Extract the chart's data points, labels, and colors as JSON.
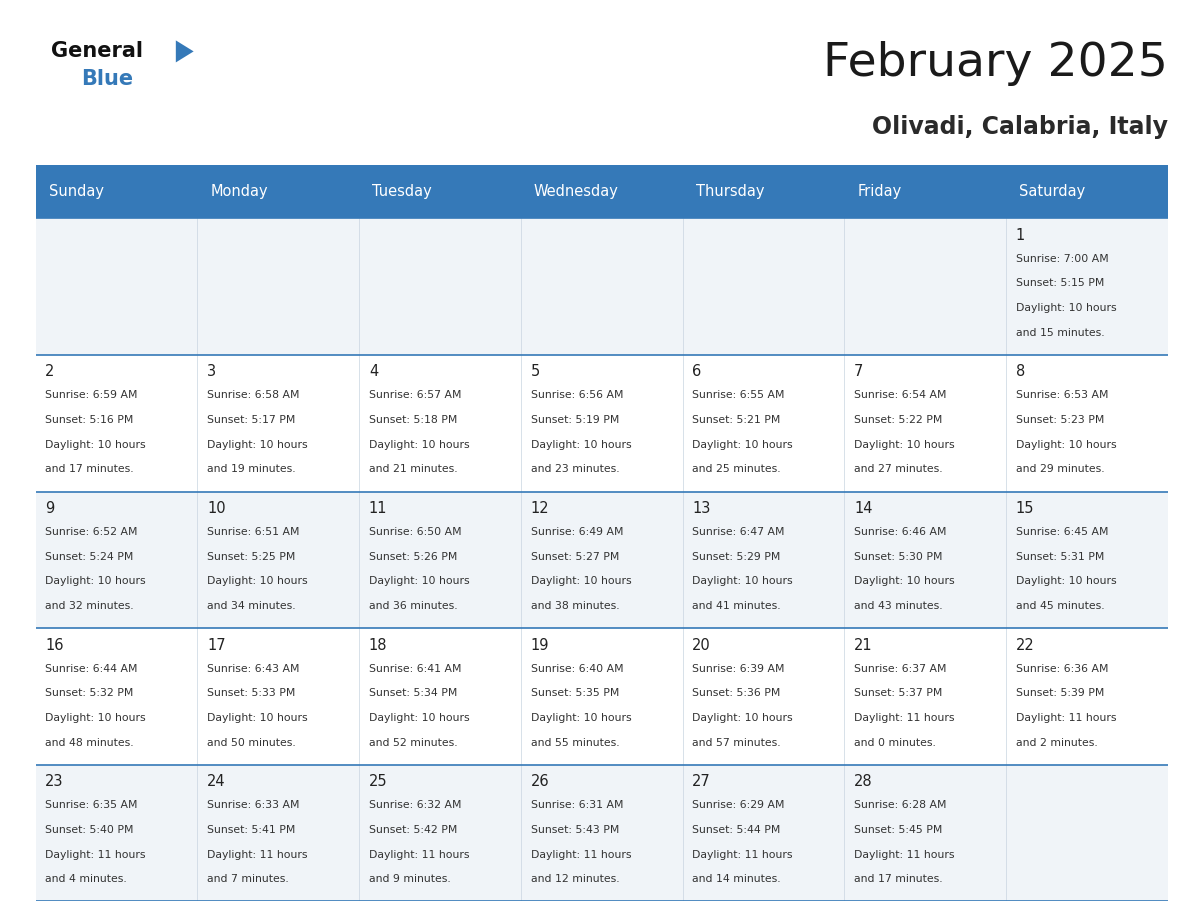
{
  "title": "February 2025",
  "subtitle": "Olivadi, Calabria, Italy",
  "header_bg": "#3579b8",
  "header_text_color": "#ffffff",
  "day_names": [
    "Sunday",
    "Monday",
    "Tuesday",
    "Wednesday",
    "Thursday",
    "Friday",
    "Saturday"
  ],
  "grid_line_color": "#3579b8",
  "bg_color": "#ffffff",
  "cell_bg_white": "#ffffff",
  "cell_bg_gray": "#f0f4f8",
  "calendar": [
    [
      null,
      null,
      null,
      null,
      null,
      null,
      {
        "day": "1",
        "sunrise": "7:00 AM",
        "sunset": "5:15 PM",
        "daylight_line1": "Daylight: 10 hours",
        "daylight_line2": "and 15 minutes."
      }
    ],
    [
      {
        "day": "2",
        "sunrise": "6:59 AM",
        "sunset": "5:16 PM",
        "daylight_line1": "Daylight: 10 hours",
        "daylight_line2": "and 17 minutes."
      },
      {
        "day": "3",
        "sunrise": "6:58 AM",
        "sunset": "5:17 PM",
        "daylight_line1": "Daylight: 10 hours",
        "daylight_line2": "and 19 minutes."
      },
      {
        "day": "4",
        "sunrise": "6:57 AM",
        "sunset": "5:18 PM",
        "daylight_line1": "Daylight: 10 hours",
        "daylight_line2": "and 21 minutes."
      },
      {
        "day": "5",
        "sunrise": "6:56 AM",
        "sunset": "5:19 PM",
        "daylight_line1": "Daylight: 10 hours",
        "daylight_line2": "and 23 minutes."
      },
      {
        "day": "6",
        "sunrise": "6:55 AM",
        "sunset": "5:21 PM",
        "daylight_line1": "Daylight: 10 hours",
        "daylight_line2": "and 25 minutes."
      },
      {
        "day": "7",
        "sunrise": "6:54 AM",
        "sunset": "5:22 PM",
        "daylight_line1": "Daylight: 10 hours",
        "daylight_line2": "and 27 minutes."
      },
      {
        "day": "8",
        "sunrise": "6:53 AM",
        "sunset": "5:23 PM",
        "daylight_line1": "Daylight: 10 hours",
        "daylight_line2": "and 29 minutes."
      }
    ],
    [
      {
        "day": "9",
        "sunrise": "6:52 AM",
        "sunset": "5:24 PM",
        "daylight_line1": "Daylight: 10 hours",
        "daylight_line2": "and 32 minutes."
      },
      {
        "day": "10",
        "sunrise": "6:51 AM",
        "sunset": "5:25 PM",
        "daylight_line1": "Daylight: 10 hours",
        "daylight_line2": "and 34 minutes."
      },
      {
        "day": "11",
        "sunrise": "6:50 AM",
        "sunset": "5:26 PM",
        "daylight_line1": "Daylight: 10 hours",
        "daylight_line2": "and 36 minutes."
      },
      {
        "day": "12",
        "sunrise": "6:49 AM",
        "sunset": "5:27 PM",
        "daylight_line1": "Daylight: 10 hours",
        "daylight_line2": "and 38 minutes."
      },
      {
        "day": "13",
        "sunrise": "6:47 AM",
        "sunset": "5:29 PM",
        "daylight_line1": "Daylight: 10 hours",
        "daylight_line2": "and 41 minutes."
      },
      {
        "day": "14",
        "sunrise": "6:46 AM",
        "sunset": "5:30 PM",
        "daylight_line1": "Daylight: 10 hours",
        "daylight_line2": "and 43 minutes."
      },
      {
        "day": "15",
        "sunrise": "6:45 AM",
        "sunset": "5:31 PM",
        "daylight_line1": "Daylight: 10 hours",
        "daylight_line2": "and 45 minutes."
      }
    ],
    [
      {
        "day": "16",
        "sunrise": "6:44 AM",
        "sunset": "5:32 PM",
        "daylight_line1": "Daylight: 10 hours",
        "daylight_line2": "and 48 minutes."
      },
      {
        "day": "17",
        "sunrise": "6:43 AM",
        "sunset": "5:33 PM",
        "daylight_line1": "Daylight: 10 hours",
        "daylight_line2": "and 50 minutes."
      },
      {
        "day": "18",
        "sunrise": "6:41 AM",
        "sunset": "5:34 PM",
        "daylight_line1": "Daylight: 10 hours",
        "daylight_line2": "and 52 minutes."
      },
      {
        "day": "19",
        "sunrise": "6:40 AM",
        "sunset": "5:35 PM",
        "daylight_line1": "Daylight: 10 hours",
        "daylight_line2": "and 55 minutes."
      },
      {
        "day": "20",
        "sunrise": "6:39 AM",
        "sunset": "5:36 PM",
        "daylight_line1": "Daylight: 10 hours",
        "daylight_line2": "and 57 minutes."
      },
      {
        "day": "21",
        "sunrise": "6:37 AM",
        "sunset": "5:37 PM",
        "daylight_line1": "Daylight: 11 hours",
        "daylight_line2": "and 0 minutes."
      },
      {
        "day": "22",
        "sunrise": "6:36 AM",
        "sunset": "5:39 PM",
        "daylight_line1": "Daylight: 11 hours",
        "daylight_line2": "and 2 minutes."
      }
    ],
    [
      {
        "day": "23",
        "sunrise": "6:35 AM",
        "sunset": "5:40 PM",
        "daylight_line1": "Daylight: 11 hours",
        "daylight_line2": "and 4 minutes."
      },
      {
        "day": "24",
        "sunrise": "6:33 AM",
        "sunset": "5:41 PM",
        "daylight_line1": "Daylight: 11 hours",
        "daylight_line2": "and 7 minutes."
      },
      {
        "day": "25",
        "sunrise": "6:32 AM",
        "sunset": "5:42 PM",
        "daylight_line1": "Daylight: 11 hours",
        "daylight_line2": "and 9 minutes."
      },
      {
        "day": "26",
        "sunrise": "6:31 AM",
        "sunset": "5:43 PM",
        "daylight_line1": "Daylight: 11 hours",
        "daylight_line2": "and 12 minutes."
      },
      {
        "day": "27",
        "sunrise": "6:29 AM",
        "sunset": "5:44 PM",
        "daylight_line1": "Daylight: 11 hours",
        "daylight_line2": "and 14 minutes."
      },
      {
        "day": "28",
        "sunrise": "6:28 AM",
        "sunset": "5:45 PM",
        "daylight_line1": "Daylight: 11 hours",
        "daylight_line2": "and 17 minutes."
      },
      null
    ]
  ]
}
